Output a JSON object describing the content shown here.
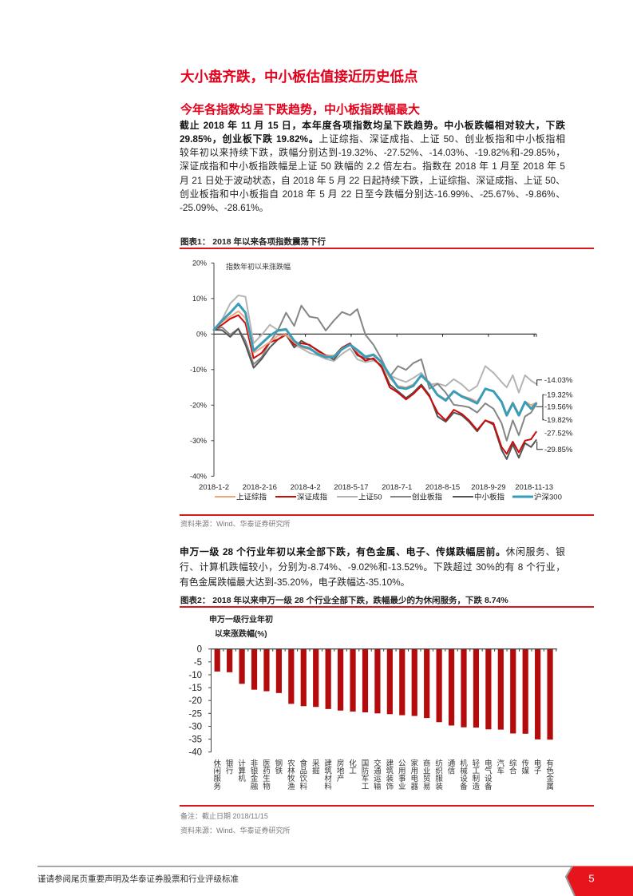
{
  "colors": {
    "title_red": "#e3001b",
    "rule_red": "#d7191c",
    "bar_red": "#b40c0c",
    "page_tab_red": "#e8141c",
    "page_tab_edge": "#9a9a9a"
  },
  "page": {
    "section_title": "大小盘齐跌，中小板估值接近历史低点",
    "subsection_title": "今年各指数均呈下跌趋势，中小板指跌幅最大",
    "paragraph1": {
      "lines": [
        {
          "bold": "截止 2018 年 11 月 15 日，本年度各项指数均呈下跌趋势。中小板跌幅相对较大，下跌",
          "normal": ""
        },
        {
          "bold": "29.85%，创业板下跌 19.82%。",
          "normal": "上证综指、深证成指、上证 50、创业板指和中小板指相"
        },
        {
          "bold": "",
          "normal": "较年初以来持续下跌，跌幅分别达到-19.32%、-27.52%、-14.03%、-19.82%和-29.85%，"
        },
        {
          "bold": "",
          "normal": "深证成指和中小板指跌幅是上证 50 跌幅的 2.2 倍左右。指数在 2018 年 1 月至 2018 年 5"
        },
        {
          "bold": "",
          "normal": "月 21 日处于波动状态，自 2018 年 5 月 22 日起持续下跌，上证综指、深证成指、上证 50、"
        },
        {
          "bold": "",
          "normal": "创业板指和中小板指自 2018 年 5 月 22 日至今跌幅分别达-16.99%、-25.67%、-9.86%、"
        },
        {
          "bold": "",
          "normal": "-25.09%、-28.61%。"
        }
      ]
    },
    "figure1": {
      "caption": "图表1： 2018 年以来各项指数震荡下行",
      "source": "资料来源：Wind、华泰证券研究所"
    },
    "paragraph2": {
      "lines": [
        {
          "bold": "申万一级 28 个行业年初以来全部下跌，有色金属、电子、传媒跌幅居前。",
          "normal": "休闲服务、银"
        },
        {
          "bold": "",
          "normal": "行、计算机跌幅较小，分别为-8.74%、-9.02%和-13.52%。下跌超过 30%的有 8 个行业，"
        },
        {
          "bold": "",
          "normal": "有色金属跌幅最大达到-35.20%，电子跌幅达-35.10%。"
        }
      ]
    },
    "figure2": {
      "caption": "图表2： 2018 年以来申万一级 28 个行业全部下跌，跌幅最少的为休闲服务，下跌 8.74%",
      "note": "备注：截止日期 2018/11/15",
      "source": "资料来源：Wind、华泰证券研究所"
    },
    "footer": {
      "disclaimer": "谨请参阅尾页重要声明及华泰证券股票和行业评级标准",
      "page_number": "5"
    }
  },
  "chart_data": [
    {
      "type": "line",
      "title": "2018 年以来各项指数震荡下行",
      "annotation": "指数年初以来涨跌幅",
      "xlabel": "",
      "ylabel": "",
      "x": [
        0,
        8,
        16,
        24,
        31,
        39,
        47,
        55,
        63,
        71,
        79,
        86,
        94,
        102,
        110,
        118,
        126,
        134,
        141,
        149,
        157,
        165,
        173,
        181,
        189,
        196,
        204,
        212,
        220,
        228,
        236,
        244,
        251,
        259,
        267,
        275,
        283,
        288,
        294,
        300,
        306,
        312,
        317
      ],
      "x_tick_labels": [
        "2018-1-2",
        "2018-2-16",
        "2018-4-2",
        "2018-5-17",
        "2018-7-1",
        "2018-8-15",
        "2018-9-29",
        "2018-11-13"
      ],
      "x_tick_positions": [
        0,
        45,
        90,
        135,
        180,
        225,
        270,
        315
      ],
      "ylim": [
        -40,
        20
      ],
      "y_ticks": [
        20,
        10,
        0,
        -10,
        -20,
        -30,
        -40
      ],
      "y_tick_labels": [
        "20%",
        "10%",
        "0%",
        "-10%",
        "-20%",
        "-30%",
        "-40%"
      ],
      "grid": false,
      "legend_position": "bottom",
      "series": [
        {
          "name": "上证综指",
          "color": "#f6a47e",
          "width": 2,
          "final": -19.32,
          "values": [
            1.2,
            3.4,
            4.9,
            6.4,
            4.5,
            -5.3,
            -3.8,
            -2.3,
            -0.4,
            -0.2,
            -2.3,
            -3.8,
            -4.3,
            -5.3,
            -6.2,
            -6.0,
            -4.5,
            -3.0,
            -4.9,
            -6.6,
            -6.0,
            -8.2,
            -12.4,
            -14.6,
            -15.0,
            -14.2,
            -11.8,
            -13.5,
            -17.0,
            -18.4,
            -16.0,
            -17.4,
            -18.0,
            -19.0,
            -15.5,
            -16.0,
            -19.0,
            -22.5,
            -19.2,
            -22.5,
            -19.0,
            -20.0,
            -19.32
          ]
        },
        {
          "name": "深证成指",
          "color": "#cc0a0a",
          "width": 2,
          "final": -27.52,
          "values": [
            1.2,
            2.6,
            4.3,
            5.3,
            3.0,
            -6.8,
            -5.3,
            -2.3,
            -1.5,
            0.0,
            -3.0,
            -2.6,
            -3.0,
            -4.7,
            -6.0,
            -6.2,
            -3.8,
            -2.6,
            -5.6,
            -7.5,
            -6.8,
            -9.4,
            -15.0,
            -16.5,
            -18.4,
            -16.9,
            -14.6,
            -17.6,
            -22.1,
            -24.3,
            -21.3,
            -22.5,
            -24.3,
            -27.0,
            -24.3,
            -25.1,
            -31.8,
            -33.7,
            -30.3,
            -33.3,
            -30.0,
            -29.6,
            -27.52
          ]
        },
        {
          "name": "上证50",
          "color": "#b4b4b4",
          "width": 2,
          "final": -14.03,
          "values": [
            1.2,
            4.1,
            8.6,
            10.9,
            10.5,
            -2.6,
            -0.2,
            2.6,
            1.1,
            1.5,
            -3.0,
            -4.0,
            -5.3,
            -6.0,
            -7.0,
            -7.6,
            -5.6,
            -4.1,
            -7.1,
            -7.9,
            -7.5,
            -8.6,
            -11.6,
            -12.7,
            -13.5,
            -12.4,
            -10.9,
            -14.2,
            -13.9,
            -14.6,
            -12.7,
            -14.2,
            -16.1,
            -14.6,
            -9.0,
            -10.9,
            -13.5,
            -15.0,
            -11.6,
            -16.5,
            -11.6,
            -13.1,
            -14.03
          ]
        },
        {
          "name": "创业板指",
          "color": "#858585",
          "width": 2,
          "final": -19.82,
          "values": [
            1.2,
            1.9,
            -0.2,
            1.5,
            -1.9,
            -8.5,
            -6.5,
            -2.3,
            1.1,
            6.0,
            2.3,
            8.0,
            4.9,
            4.5,
            1.0,
            3.8,
            6.2,
            5.3,
            7.0,
            -0.2,
            -3.0,
            -7.1,
            -12.0,
            -9.0,
            -10.1,
            -8.2,
            -7.1,
            -15.4,
            -14.0,
            -16.5,
            -19.9,
            -20.2,
            -20.6,
            -22.1,
            -19.5,
            -21.0,
            -25.1,
            -30.0,
            -24.3,
            -28.5,
            -23.2,
            -22.1,
            -19.82
          ]
        },
        {
          "name": "中小板指",
          "color": "#545454",
          "width": 2,
          "final": -29.85,
          "values": [
            1.2,
            1.1,
            -0.8,
            1.5,
            -3.0,
            -9.5,
            -7.0,
            -3.8,
            -1.5,
            -0.2,
            -3.8,
            -1.9,
            -3.2,
            -4.5,
            -6.0,
            -7.2,
            -4.3,
            -2.8,
            -6.0,
            -6.8,
            -7.1,
            -9.0,
            -14.2,
            -16.1,
            -18.0,
            -16.5,
            -14.2,
            -17.2,
            -23.2,
            -24.7,
            -22.1,
            -22.9,
            -24.7,
            -27.4,
            -24.3,
            -25.5,
            -32.6,
            -35.2,
            -31.1,
            -34.8,
            -30.7,
            -31.8,
            -29.85
          ]
        },
        {
          "name": "沪深300",
          "color": "#3a9db8",
          "width": 3,
          "final": -19.56,
          "values": [
            1.2,
            3.8,
            6.0,
            8.5,
            6.0,
            -4.7,
            -2.6,
            -0.5,
            1.0,
            1.3,
            -1.9,
            -3.4,
            -4.0,
            -5.6,
            -6.5,
            -6.4,
            -4.2,
            -3.0,
            -4.5,
            -6.4,
            -5.8,
            -7.9,
            -11.6,
            -15.0,
            -15.4,
            -14.6,
            -11.6,
            -13.9,
            -17.2,
            -18.7,
            -16.1,
            -17.6,
            -18.4,
            -19.5,
            -15.4,
            -16.1,
            -19.1,
            -22.9,
            -19.5,
            -22.9,
            -19.1,
            -21.0,
            -19.56
          ]
        }
      ],
      "end_labels": [
        "-14.03%",
        "-19.32%",
        "-19.56%",
        "-19.82%",
        "-27.52%",
        "-29.85%"
      ]
    },
    {
      "type": "bar",
      "title": "2018 年以来申万一级 28 个行业全部下跌，跌幅最少的为休闲服务，下跌 8.74%",
      "ylabel": [
        "申万一级行业年初",
        "以来涨跌幅(%)"
      ],
      "xlabel": "",
      "categories": [
        "休闲服务",
        "银行",
        "计算机",
        "非银金融",
        "医药生物",
        "钢铁",
        "农林牧渔",
        "食品饮料",
        "采掘",
        "建筑材料",
        "房地产",
        "化工",
        "国防军工",
        "交通运输",
        "建筑装饰",
        "公用事业",
        "家用电器",
        "商业贸易",
        "纺织服装",
        "通信",
        "机械设备",
        "轻工制造",
        "电气设备",
        "汽车",
        "综合",
        "传媒",
        "电子",
        "有色金属"
      ],
      "values": [
        -8.74,
        -9.02,
        -13.52,
        -15.8,
        -16.4,
        -17.1,
        -21.3,
        -22.2,
        -22.5,
        -23.3,
        -23.9,
        -24.3,
        -24.6,
        -25.0,
        -25.3,
        -25.7,
        -26.0,
        -26.8,
        -28.4,
        -29.7,
        -30.4,
        -30.5,
        -31.2,
        -31.3,
        -32.8,
        -32.9,
        -35.1,
        -35.2
      ],
      "ylim": [
        -40,
        0
      ],
      "y_ticks": [
        0,
        -5,
        -10,
        -15,
        -20,
        -25,
        -30,
        -35,
        -40
      ],
      "y_tick_labels": [
        "0",
        "-5",
        "-10",
        "-15",
        "-20",
        "-25",
        "-30",
        "-35",
        "-40"
      ],
      "grid": false
    }
  ]
}
